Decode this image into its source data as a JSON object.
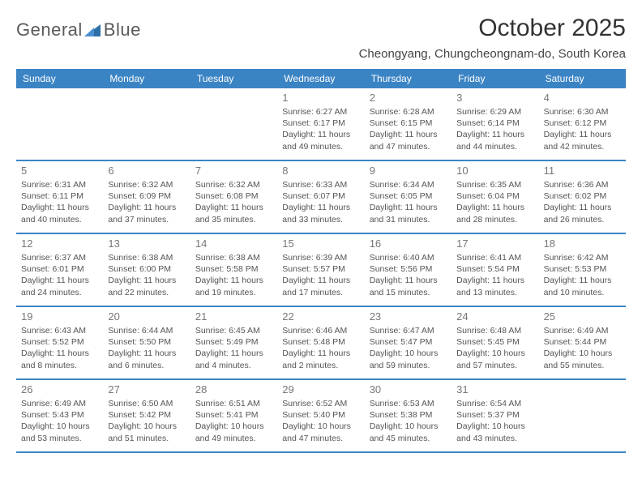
{
  "logo": {
    "text1": "General",
    "text2": "Blue"
  },
  "title": "October 2025",
  "location": "Cheongyang, Chungcheongnam-do, South Korea",
  "colors": {
    "header_bg": "#3b84c4",
    "header_text": "#ffffff",
    "border": "#3b84c4",
    "body_text": "#555555",
    "daynum": "#777777",
    "title_text": "#333333"
  },
  "typography": {
    "title_fontsize": 30,
    "location_fontsize": 15,
    "header_fontsize": 12,
    "daynum_fontsize": 13,
    "info_fontsize": 10.5
  },
  "dayNames": [
    "Sunday",
    "Monday",
    "Tuesday",
    "Wednesday",
    "Thursday",
    "Friday",
    "Saturday"
  ],
  "weeks": [
    [
      {
        "n": "",
        "sr": "",
        "ss": "",
        "dl": ""
      },
      {
        "n": "",
        "sr": "",
        "ss": "",
        "dl": ""
      },
      {
        "n": "",
        "sr": "",
        "ss": "",
        "dl": ""
      },
      {
        "n": "1",
        "sr": "Sunrise: 6:27 AM",
        "ss": "Sunset: 6:17 PM",
        "dl": "Daylight: 11 hours and 49 minutes."
      },
      {
        "n": "2",
        "sr": "Sunrise: 6:28 AM",
        "ss": "Sunset: 6:15 PM",
        "dl": "Daylight: 11 hours and 47 minutes."
      },
      {
        "n": "3",
        "sr": "Sunrise: 6:29 AM",
        "ss": "Sunset: 6:14 PM",
        "dl": "Daylight: 11 hours and 44 minutes."
      },
      {
        "n": "4",
        "sr": "Sunrise: 6:30 AM",
        "ss": "Sunset: 6:12 PM",
        "dl": "Daylight: 11 hours and 42 minutes."
      }
    ],
    [
      {
        "n": "5",
        "sr": "Sunrise: 6:31 AM",
        "ss": "Sunset: 6:11 PM",
        "dl": "Daylight: 11 hours and 40 minutes."
      },
      {
        "n": "6",
        "sr": "Sunrise: 6:32 AM",
        "ss": "Sunset: 6:09 PM",
        "dl": "Daylight: 11 hours and 37 minutes."
      },
      {
        "n": "7",
        "sr": "Sunrise: 6:32 AM",
        "ss": "Sunset: 6:08 PM",
        "dl": "Daylight: 11 hours and 35 minutes."
      },
      {
        "n": "8",
        "sr": "Sunrise: 6:33 AM",
        "ss": "Sunset: 6:07 PM",
        "dl": "Daylight: 11 hours and 33 minutes."
      },
      {
        "n": "9",
        "sr": "Sunrise: 6:34 AM",
        "ss": "Sunset: 6:05 PM",
        "dl": "Daylight: 11 hours and 31 minutes."
      },
      {
        "n": "10",
        "sr": "Sunrise: 6:35 AM",
        "ss": "Sunset: 6:04 PM",
        "dl": "Daylight: 11 hours and 28 minutes."
      },
      {
        "n": "11",
        "sr": "Sunrise: 6:36 AM",
        "ss": "Sunset: 6:02 PM",
        "dl": "Daylight: 11 hours and 26 minutes."
      }
    ],
    [
      {
        "n": "12",
        "sr": "Sunrise: 6:37 AM",
        "ss": "Sunset: 6:01 PM",
        "dl": "Daylight: 11 hours and 24 minutes."
      },
      {
        "n": "13",
        "sr": "Sunrise: 6:38 AM",
        "ss": "Sunset: 6:00 PM",
        "dl": "Daylight: 11 hours and 22 minutes."
      },
      {
        "n": "14",
        "sr": "Sunrise: 6:38 AM",
        "ss": "Sunset: 5:58 PM",
        "dl": "Daylight: 11 hours and 19 minutes."
      },
      {
        "n": "15",
        "sr": "Sunrise: 6:39 AM",
        "ss": "Sunset: 5:57 PM",
        "dl": "Daylight: 11 hours and 17 minutes."
      },
      {
        "n": "16",
        "sr": "Sunrise: 6:40 AM",
        "ss": "Sunset: 5:56 PM",
        "dl": "Daylight: 11 hours and 15 minutes."
      },
      {
        "n": "17",
        "sr": "Sunrise: 6:41 AM",
        "ss": "Sunset: 5:54 PM",
        "dl": "Daylight: 11 hours and 13 minutes."
      },
      {
        "n": "18",
        "sr": "Sunrise: 6:42 AM",
        "ss": "Sunset: 5:53 PM",
        "dl": "Daylight: 11 hours and 10 minutes."
      }
    ],
    [
      {
        "n": "19",
        "sr": "Sunrise: 6:43 AM",
        "ss": "Sunset: 5:52 PM",
        "dl": "Daylight: 11 hours and 8 minutes."
      },
      {
        "n": "20",
        "sr": "Sunrise: 6:44 AM",
        "ss": "Sunset: 5:50 PM",
        "dl": "Daylight: 11 hours and 6 minutes."
      },
      {
        "n": "21",
        "sr": "Sunrise: 6:45 AM",
        "ss": "Sunset: 5:49 PM",
        "dl": "Daylight: 11 hours and 4 minutes."
      },
      {
        "n": "22",
        "sr": "Sunrise: 6:46 AM",
        "ss": "Sunset: 5:48 PM",
        "dl": "Daylight: 11 hours and 2 minutes."
      },
      {
        "n": "23",
        "sr": "Sunrise: 6:47 AM",
        "ss": "Sunset: 5:47 PM",
        "dl": "Daylight: 10 hours and 59 minutes."
      },
      {
        "n": "24",
        "sr": "Sunrise: 6:48 AM",
        "ss": "Sunset: 5:45 PM",
        "dl": "Daylight: 10 hours and 57 minutes."
      },
      {
        "n": "25",
        "sr": "Sunrise: 6:49 AM",
        "ss": "Sunset: 5:44 PM",
        "dl": "Daylight: 10 hours and 55 minutes."
      }
    ],
    [
      {
        "n": "26",
        "sr": "Sunrise: 6:49 AM",
        "ss": "Sunset: 5:43 PM",
        "dl": "Daylight: 10 hours and 53 minutes."
      },
      {
        "n": "27",
        "sr": "Sunrise: 6:50 AM",
        "ss": "Sunset: 5:42 PM",
        "dl": "Daylight: 10 hours and 51 minutes."
      },
      {
        "n": "28",
        "sr": "Sunrise: 6:51 AM",
        "ss": "Sunset: 5:41 PM",
        "dl": "Daylight: 10 hours and 49 minutes."
      },
      {
        "n": "29",
        "sr": "Sunrise: 6:52 AM",
        "ss": "Sunset: 5:40 PM",
        "dl": "Daylight: 10 hours and 47 minutes."
      },
      {
        "n": "30",
        "sr": "Sunrise: 6:53 AM",
        "ss": "Sunset: 5:38 PM",
        "dl": "Daylight: 10 hours and 45 minutes."
      },
      {
        "n": "31",
        "sr": "Sunrise: 6:54 AM",
        "ss": "Sunset: 5:37 PM",
        "dl": "Daylight: 10 hours and 43 minutes."
      },
      {
        "n": "",
        "sr": "",
        "ss": "",
        "dl": ""
      }
    ]
  ]
}
